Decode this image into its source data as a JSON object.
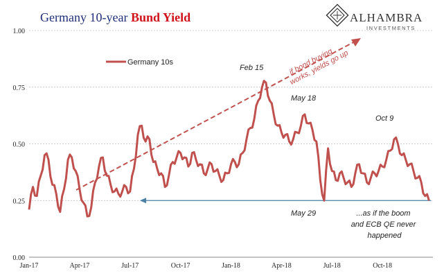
{
  "chart_data": {
    "type": "line",
    "title_part1": "Germany 10-year ",
    "title_part2": "Bund Yield",
    "xlabel": "",
    "ylabel": "",
    "x_start": "2017-01",
    "x_end": "2018-12",
    "x_ticks": [
      "Jan-17",
      "Apr-17",
      "Jul-17",
      "Oct-17",
      "Jan-18",
      "Apr-18",
      "Jul-18",
      "Oct-18"
    ],
    "y_ticks": [
      "0.00",
      "0.25",
      "0.50",
      "0.75",
      "1.00"
    ],
    "ylim": [
      0,
      1
    ],
    "grid": "horizontal dashed",
    "legend_position": "top-left",
    "series": [
      {
        "name": "Germany 10s",
        "color": "#c0504d",
        "x_weeks": [
          0,
          1,
          2,
          3,
          4,
          5,
          6,
          7,
          8,
          9,
          10,
          11,
          12,
          13,
          14,
          15,
          16,
          17,
          18,
          19,
          20,
          21,
          22,
          23,
          24,
          25,
          26,
          27,
          28,
          29,
          30,
          31,
          32,
          33,
          34,
          35,
          36,
          37,
          38,
          39,
          40,
          41,
          42,
          43,
          44,
          45,
          46,
          47,
          48,
          49,
          50,
          51,
          52,
          53,
          54,
          55,
          56,
          57,
          58,
          59,
          60,
          61,
          62,
          63,
          64,
          65,
          66,
          67,
          68,
          69,
          70,
          71,
          72,
          73,
          74,
          75,
          76,
          77,
          78,
          79,
          80,
          81,
          82,
          83,
          84,
          85,
          86,
          87,
          88,
          89,
          90,
          91,
          92,
          93,
          94,
          95,
          96,
          97,
          98,
          99,
          100,
          101,
          102,
          103
        ],
        "values": [
          0.21,
          0.31,
          0.27,
          0.36,
          0.45,
          0.43,
          0.32,
          0.28,
          0.2,
          0.3,
          0.43,
          0.44,
          0.38,
          0.3,
          0.24,
          0.18,
          0.22,
          0.33,
          0.4,
          0.44,
          0.36,
          0.32,
          0.29,
          0.28,
          0.29,
          0.31,
          0.29,
          0.39,
          0.54,
          0.58,
          0.51,
          0.52,
          0.42,
          0.39,
          0.37,
          0.31,
          0.36,
          0.42,
          0.44,
          0.46,
          0.44,
          0.4,
          0.46,
          0.43,
          0.41,
          0.37,
          0.39,
          0.41,
          0.38,
          0.36,
          0.34,
          0.37,
          0.41,
          0.42,
          0.41,
          0.46,
          0.52,
          0.57,
          0.61,
          0.69,
          0.75,
          0.77,
          0.69,
          0.63,
          0.58,
          0.55,
          0.54,
          0.51,
          0.52,
          0.55,
          0.58,
          0.63,
          0.59,
          0.56,
          0.51,
          0.34,
          0.25,
          0.48,
          0.38,
          0.34,
          0.37,
          0.35,
          0.33,
          0.31,
          0.37,
          0.41,
          0.37,
          0.33,
          0.35,
          0.37,
          0.38,
          0.4,
          0.43,
          0.47,
          0.52,
          0.5,
          0.45,
          0.43,
          0.41,
          0.38,
          0.35,
          0.33,
          0.27,
          0.25
        ]
      }
    ],
    "annotations": {
      "feb15": "Feb 15",
      "may18": "May 18",
      "oct9": "Oct 9",
      "may29": "May 29",
      "boom_line1": "...as if the boom",
      "boom_line2": "and ECB QE never",
      "boom_line3": "happened",
      "arrow_line1": "if bond buying",
      "arrow_line2": "works, yields go up",
      "floor_level": 0.25
    }
  },
  "branding": {
    "name": "ALHAMBRA",
    "sub": "INVESTMENTS",
    "logo_icon": "alhambra-diamond-logo"
  }
}
